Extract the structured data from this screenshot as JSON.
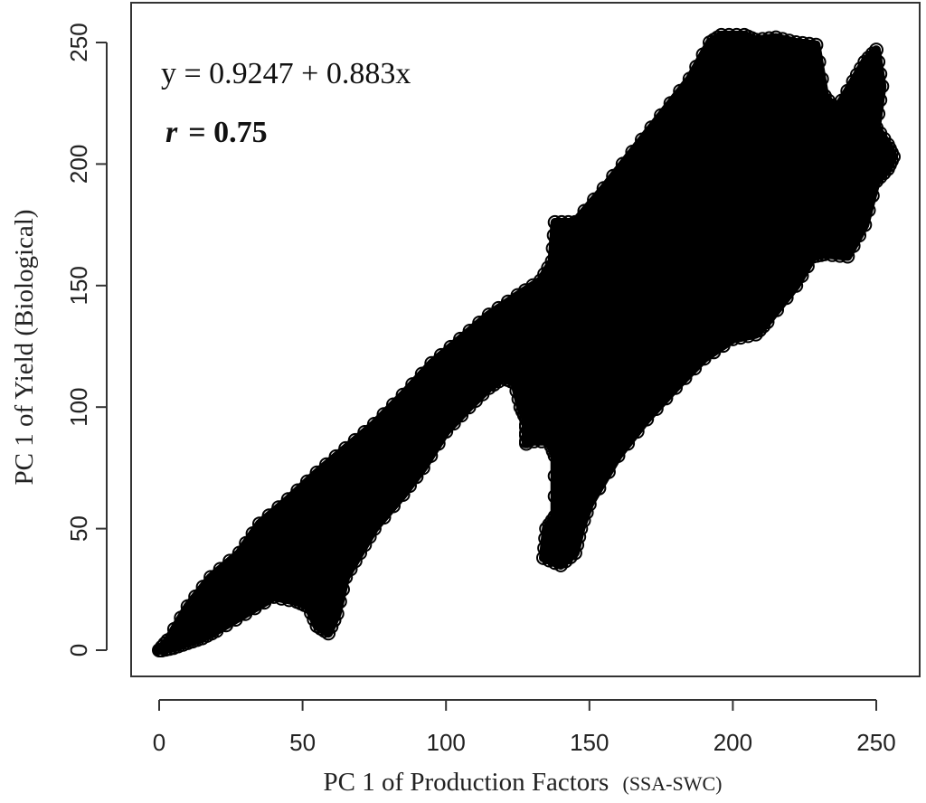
{
  "chart_data": {
    "type": "scatter",
    "title": "",
    "xlabel": "PC 1 of Production Factors",
    "xlabel_suffix": "(SSA-SWC)",
    "ylabel": "PC 1 of Yield (Biological)",
    "xlim": [
      0,
      255
    ],
    "ylim": [
      0,
      255
    ],
    "x_ticks": [
      0,
      50,
      100,
      150,
      200,
      250
    ],
    "y_ticks": [
      0,
      50,
      100,
      150,
      200,
      250
    ],
    "grid": false,
    "legend": "none",
    "marker": "open-circle",
    "point_color": "#000000",
    "annotations": {
      "equation": "y = 0.9247 + 0.883x",
      "r_symbol": "r",
      "r_value": "= 0.75"
    },
    "regions": [
      {
        "name": "main-band",
        "polygon": [
          [
            0,
            0
          ],
          [
            3,
            4
          ],
          [
            10,
            18
          ],
          [
            18,
            30
          ],
          [
            28,
            40
          ],
          [
            35,
            52
          ],
          [
            45,
            62
          ],
          [
            55,
            73
          ],
          [
            65,
            83
          ],
          [
            75,
            93
          ],
          [
            85,
            105
          ],
          [
            95,
            118
          ],
          [
            105,
            128
          ],
          [
            115,
            138
          ],
          [
            125,
            146
          ],
          [
            133,
            152
          ],
          [
            137,
            160
          ],
          [
            138,
            176
          ],
          [
            145,
            176
          ],
          [
            155,
            190
          ],
          [
            165,
            205
          ],
          [
            175,
            220
          ],
          [
            185,
            235
          ],
          [
            192,
            250
          ],
          [
            196,
            253
          ],
          [
            204,
            253
          ],
          [
            208,
            251
          ],
          [
            215,
            252
          ],
          [
            222,
            250
          ],
          [
            229,
            249
          ],
          [
            232,
            228
          ],
          [
            236,
            222
          ],
          [
            242,
            234
          ],
          [
            246,
            242
          ],
          [
            250,
            247
          ],
          [
            252,
            232
          ],
          [
            250,
            215
          ],
          [
            254,
            208
          ],
          [
            256,
            203
          ],
          [
            254,
            198
          ],
          [
            250,
            193
          ],
          [
            246,
            175
          ],
          [
            240,
            162
          ],
          [
            232,
            163
          ],
          [
            228,
            162
          ],
          [
            222,
            150
          ],
          [
            212,
            135
          ],
          [
            208,
            130
          ],
          [
            200,
            128
          ],
          [
            190,
            120
          ],
          [
            180,
            108
          ],
          [
            170,
            95
          ],
          [
            160,
            80
          ],
          [
            150,
            60
          ],
          [
            147,
            50
          ],
          [
            145,
            40
          ],
          [
            140,
            35
          ],
          [
            134,
            38
          ],
          [
            135,
            50
          ],
          [
            138,
            55
          ],
          [
            138,
            80
          ],
          [
            136,
            86
          ],
          [
            132,
            90
          ],
          [
            128,
            85
          ],
          [
            128,
            95
          ],
          [
            126,
            100
          ],
          [
            124,
            110
          ],
          [
            120,
            112
          ],
          [
            115,
            108
          ],
          [
            108,
            100
          ],
          [
            100,
            90
          ],
          [
            92,
            75
          ],
          [
            85,
            64
          ],
          [
            75,
            50
          ],
          [
            70,
            40
          ],
          [
            65,
            30
          ],
          [
            62,
            15
          ],
          [
            59,
            7
          ],
          [
            55,
            10
          ],
          [
            52,
            18
          ],
          [
            48,
            20
          ],
          [
            40,
            22
          ],
          [
            30,
            15
          ],
          [
            20,
            8
          ],
          [
            15,
            5
          ],
          [
            10,
            3
          ],
          [
            5,
            1
          ],
          [
            1,
            0
          ]
        ]
      },
      {
        "name": "notch",
        "polygon": [
          [
            128,
            86
          ],
          [
            136,
            86
          ],
          [
            138,
            96
          ],
          [
            132,
            100
          ],
          [
            128,
            96
          ]
        ]
      }
    ]
  }
}
